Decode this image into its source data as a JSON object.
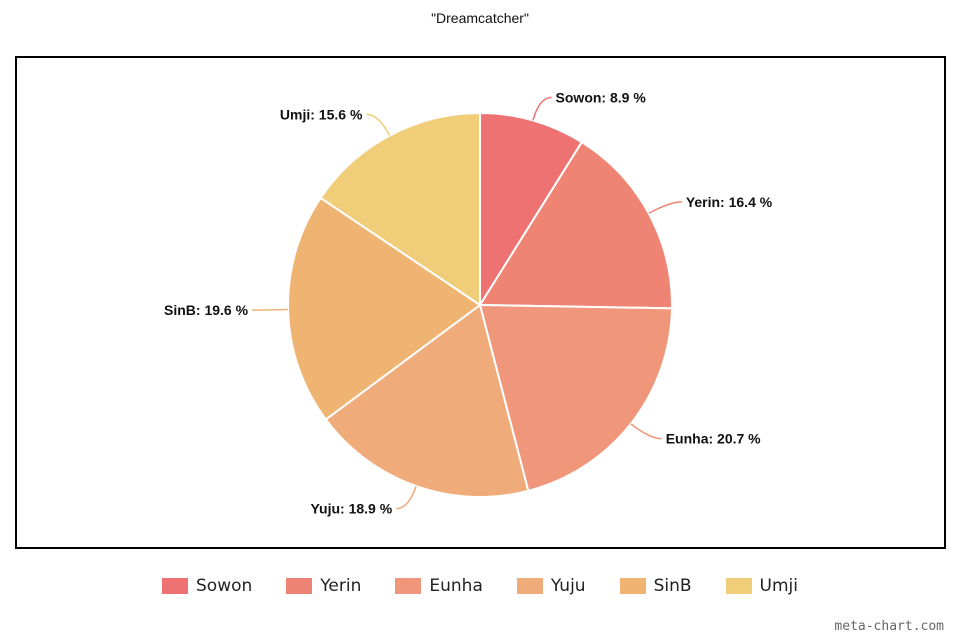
{
  "chart_data": {
    "type": "pie",
    "title": "\"Dreamcatcher\"",
    "slices": [
      {
        "name": "Sowon",
        "value": 8.9,
        "label": "Sowon: 8.9 %",
        "color": "#ee7272"
      },
      {
        "name": "Yerin",
        "value": 16.4,
        "label": "Yerin: 16.4 %",
        "color": "#f08474"
      },
      {
        "name": "Eunha",
        "value": 20.7,
        "label": "Eunha: 20.7 %",
        "color": "#f0967a"
      },
      {
        "name": "Yuju",
        "value": 18.9,
        "label": "Yuju: 18.9 %",
        "color": "#efab7a"
      },
      {
        "name": "SinB",
        "value": 19.6,
        "label": "SinB: 19.6 %",
        "color": "#efb372"
      },
      {
        "name": "Umji",
        "value": 15.6,
        "label": "Umji: 15.6 %",
        "color": "#f0cd78"
      }
    ],
    "legend": {
      "position": "bottom"
    },
    "start_angle": "top",
    "direction": "clockwise"
  },
  "watermark": "meta-chart.com"
}
